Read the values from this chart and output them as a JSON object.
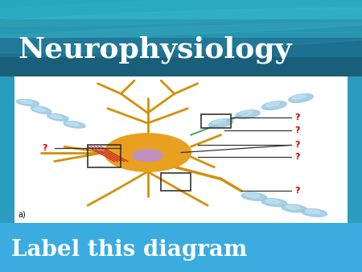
{
  "title": "Neurophysiology",
  "subtitle": "Label this diagram",
  "title_color": "#FFFFFF",
  "title_fontsize": 26,
  "subtitle_color": "#FFFFFF",
  "subtitle_fontsize": 20,
  "header_colors": [
    "#1a5f7a",
    "#1c7090",
    "#2090a8",
    "#25a8c0"
  ],
  "footer_color": "#3aace0",
  "diagram_bg": "#FFFFFF",
  "label_a": "a)",
  "question_color": "#cc0000",
  "line_color": "#333333",
  "soma_color": "#e8a020",
  "nucleus_color": "#c090c0",
  "dendrite_color": "#d4900a",
  "myelin_color": "#9ac8e0",
  "myelin_highlight": "#c8e8f8",
  "axon_color": "#d4900a",
  "red_fiber_color": "#cc2222",
  "green_axon_color": "#50a858",
  "box_edge_color": "#333333"
}
